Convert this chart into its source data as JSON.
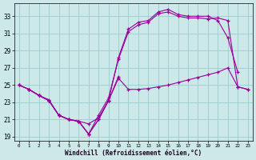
{
  "xlabel": "Windchill (Refroidissement éolien,°C)",
  "xlim": [
    -0.5,
    23.5
  ],
  "ylim": [
    18.5,
    34.5
  ],
  "yticks": [
    19,
    21,
    23,
    25,
    27,
    29,
    31,
    33
  ],
  "xticks": [
    0,
    1,
    2,
    3,
    4,
    5,
    6,
    7,
    8,
    9,
    10,
    11,
    12,
    13,
    14,
    15,
    16,
    17,
    18,
    19,
    20,
    21,
    22,
    23
  ],
  "bg_color": "#cce8e8",
  "grid_color": "#99cccc",
  "line_color": "#990099",
  "line1_x": [
    0,
    1,
    2,
    3,
    4,
    5,
    6,
    7,
    8,
    9,
    10
  ],
  "line1_y": [
    25.0,
    24.5,
    23.8,
    23.3,
    21.5,
    21.0,
    20.8,
    20.5,
    21.2,
    23.2,
    26.0
  ],
  "line2_x": [
    0,
    1,
    2,
    3,
    4,
    5,
    6,
    7,
    8,
    9,
    10,
    11,
    12,
    13,
    14,
    15,
    16,
    17,
    18,
    19,
    20,
    21,
    22
  ],
  "line2_y": [
    25.0,
    24.5,
    23.8,
    23.2,
    21.5,
    21.0,
    20.8,
    19.3,
    21.0,
    23.2,
    28.2,
    31.5,
    32.3,
    32.5,
    33.5,
    33.8,
    33.2,
    33.0,
    33.0,
    33.0,
    32.5,
    30.5,
    26.5
  ],
  "line3_x": [
    0,
    1,
    2,
    3,
    4,
    5,
    6,
    7,
    8,
    9,
    10,
    11,
    12,
    13,
    14,
    15,
    16,
    17,
    18,
    19,
    20,
    21,
    22,
    23
  ],
  "line3_y": [
    25.0,
    24.5,
    23.8,
    23.2,
    21.5,
    21.0,
    20.8,
    19.3,
    21.5,
    23.5,
    28.0,
    31.2,
    32.0,
    32.3,
    33.3,
    33.5,
    33.0,
    32.8,
    32.8,
    32.7,
    32.8,
    32.5,
    24.8,
    24.5
  ],
  "line4_x": [
    1,
    2,
    3,
    4,
    5,
    6,
    7,
    8,
    9,
    10,
    11,
    12,
    13,
    14,
    15,
    16,
    17,
    18,
    19,
    20,
    21,
    22,
    23
  ],
  "line4_y": [
    24.5,
    23.8,
    23.2,
    21.5,
    21.0,
    20.8,
    19.3,
    21.0,
    23.2,
    25.8,
    24.5,
    24.5,
    24.6,
    24.8,
    25.0,
    25.3,
    25.6,
    25.9,
    26.2,
    26.5,
    27.0,
    24.8,
    24.5
  ]
}
